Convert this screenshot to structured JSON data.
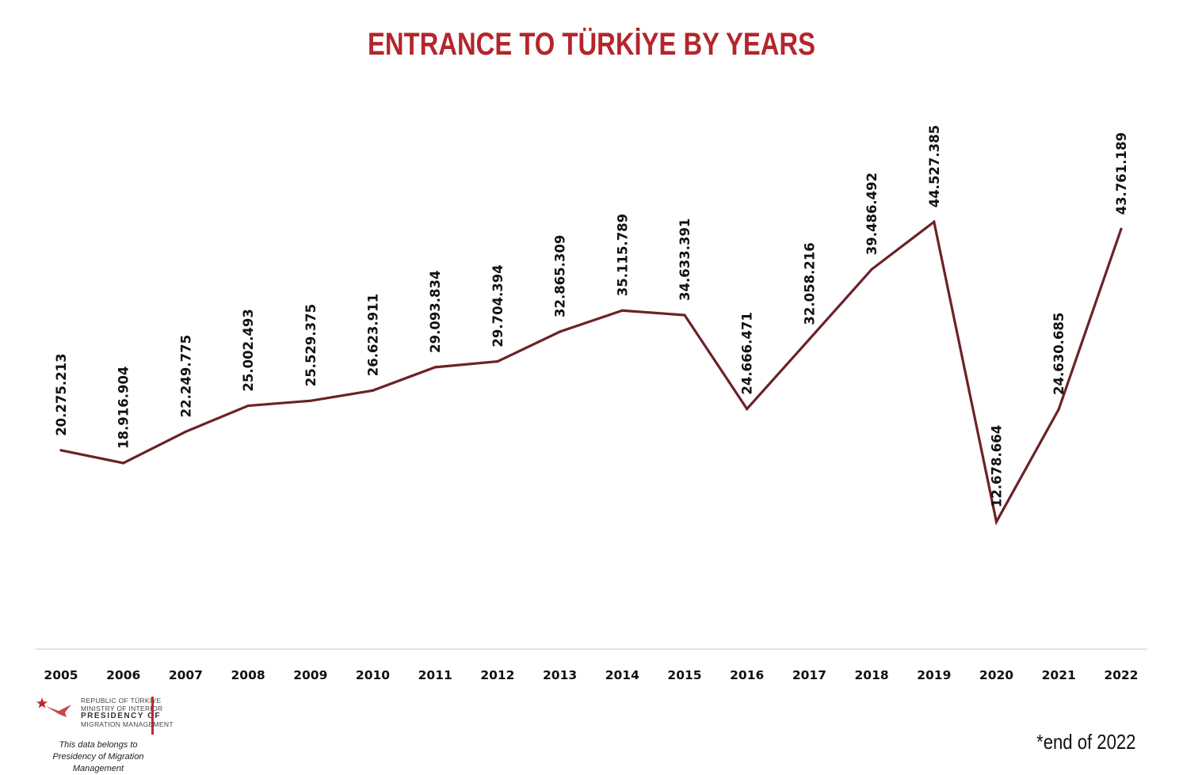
{
  "colors": {
    "title": "#b3262c",
    "line": "#6b2226",
    "axis": "#d9d9d9",
    "text": "#111111"
  },
  "chart_data": {
    "type": "line",
    "title": "ENTRANCE TO TÜRKİYE BY YEARS",
    "xlabel": "",
    "ylabel": "",
    "grid": false,
    "ylim": [
      0,
      58000000
    ],
    "categories": [
      "2005",
      "2006",
      "2007",
      "2008",
      "2009",
      "2010",
      "2011",
      "2012",
      "2013",
      "2014",
      "2015",
      "2016",
      "2017",
      "2018",
      "2019",
      "2020",
      "2021",
      "2022"
    ],
    "series": [
      {
        "values": [
          20275213,
          18916904,
          22249775,
          25002493,
          25529375,
          26623911,
          29093834,
          29704394,
          32865309,
          35115789,
          34633391,
          24666471,
          32058216,
          39486492,
          44527385,
          12678664,
          24630685,
          43761189
        ],
        "labels": [
          "20.275.213",
          "18.916.904",
          "22.249.775",
          "25.002.493",
          "25.529.375",
          "26.623.911",
          "29.093.834",
          "29.704.394",
          "32.865.309",
          "35.115.789",
          "34.633.391",
          "24.666.471",
          "32.058.216",
          "39.486.492",
          "44.527.385",
          "12.678.664",
          "24.630.685",
          "43.761.189"
        ]
      }
    ]
  },
  "logo": {
    "line1": "REPUBLIC OF TÜRKİYE",
    "line2": "MINISTRY OF INTERIOR",
    "line3": "PRESIDENCY OF",
    "line4": "MIGRATION MANAGEMENT",
    "icon": "crescent-star-bird-logo"
  },
  "owner_note": {
    "line1": "This data belongs to",
    "line2": "Presidency of Migration Management"
  },
  "footnote": "*end of 2022"
}
